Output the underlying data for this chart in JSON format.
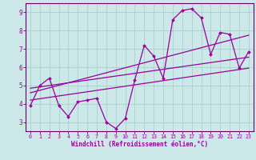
{
  "xlabel": "Windchill (Refroidissement éolien,°C)",
  "bg_color": "#cce8e8",
  "grid_color": "#aad0d0",
  "line_color": "#990099",
  "spine_color": "#660066",
  "xlim": [
    -0.5,
    23.5
  ],
  "ylim": [
    2.5,
    9.5
  ],
  "xticks": [
    0,
    1,
    2,
    3,
    4,
    5,
    6,
    7,
    8,
    9,
    10,
    11,
    12,
    13,
    14,
    15,
    16,
    17,
    18,
    19,
    20,
    21,
    22,
    23
  ],
  "yticks": [
    3,
    4,
    5,
    6,
    7,
    8,
    9
  ],
  "series1_x": [
    0,
    1,
    2,
    3,
    4,
    5,
    6,
    7,
    8,
    9,
    10,
    11,
    12,
    13,
    14,
    15,
    16,
    17,
    18,
    19,
    20,
    21,
    22,
    23
  ],
  "series1_y": [
    3.9,
    5.0,
    5.4,
    3.9,
    3.3,
    4.1,
    4.2,
    4.3,
    3.0,
    2.65,
    3.2,
    5.3,
    7.2,
    6.6,
    5.4,
    8.6,
    9.1,
    9.2,
    8.7,
    6.7,
    7.9,
    7.8,
    5.95,
    6.85
  ],
  "series2_x": [
    0,
    23
  ],
  "series2_y": [
    4.85,
    6.55
  ],
  "series3_x": [
    0,
    23
  ],
  "series3_y": [
    4.6,
    7.75
  ],
  "series4_x": [
    0,
    23
  ],
  "series4_y": [
    4.2,
    5.95
  ]
}
